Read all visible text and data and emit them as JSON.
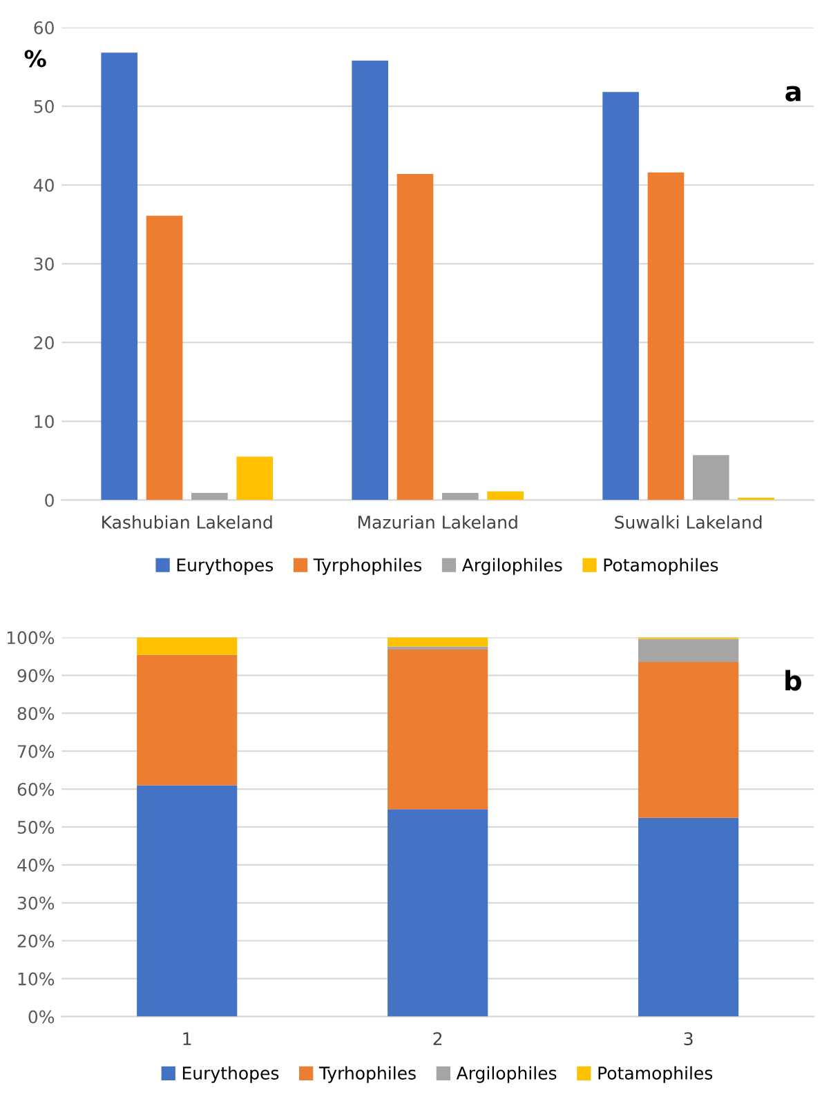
{
  "chart_data": [
    {
      "type": "bar",
      "ylabel": "%",
      "annotations": [
        "a"
      ],
      "categories": [
        "Kashubian Lakeland",
        "Mazurian Lakeland",
        "Suwalki Lakeland"
      ],
      "series": [
        {
          "name": "Eurythopes",
          "color": "#4472c4",
          "values": [
            56.8,
            55.8,
            51.8
          ]
        },
        {
          "name": "Tyrphophiles",
          "color": "#ed7d31",
          "values": [
            36.1,
            41.4,
            41.6
          ]
        },
        {
          "name": "Argilophiles",
          "color": "#a5a5a5",
          "values": [
            0.9,
            0.9,
            5.7
          ]
        },
        {
          "name": "Potamophiles",
          "color": "#ffc000",
          "values": [
            5.5,
            1.1,
            0.3
          ]
        }
      ],
      "ylim": [
        0,
        60
      ],
      "yticks": [
        0,
        10,
        20,
        30,
        40,
        50,
        60
      ],
      "grid": "y",
      "legend": "bottom"
    },
    {
      "type": "bar",
      "stacked": true,
      "annotations": [
        "b"
      ],
      "categories": [
        "1",
        "2",
        "3"
      ],
      "series": [
        {
          "name": "Eurythopes",
          "color": "#4472c4",
          "values": [
            61.0,
            54.7,
            52.4
          ]
        },
        {
          "name": "Tyrhophiles",
          "color": "#ed7d31",
          "values": [
            34.4,
            42.1,
            41.1
          ]
        },
        {
          "name": "Argilophiles",
          "color": "#a5a5a5",
          "values": [
            null,
            0.8,
            6.1
          ]
        },
        {
          "name": "Potamophiles",
          "color": "#ffc000",
          "values": [
            4.6,
            2.4,
            0.4
          ]
        }
      ],
      "ylim": [
        0,
        100
      ],
      "yticks": [
        {
          "value": 0,
          "label": "0%"
        },
        {
          "value": 10,
          "label": "10%"
        },
        {
          "value": 20,
          "label": "20%"
        },
        {
          "value": 30,
          "label": "30%"
        },
        {
          "value": 40,
          "label": "40%"
        },
        {
          "value": 50,
          "label": "50%"
        },
        {
          "value": 60,
          "label": "60%"
        },
        {
          "value": 70,
          "label": "70%"
        },
        {
          "value": 80,
          "label": "80%"
        },
        {
          "value": 90,
          "label": "90%"
        },
        {
          "value": 100,
          "label": "100%"
        }
      ],
      "grid": "y",
      "legend": "bottom"
    }
  ]
}
